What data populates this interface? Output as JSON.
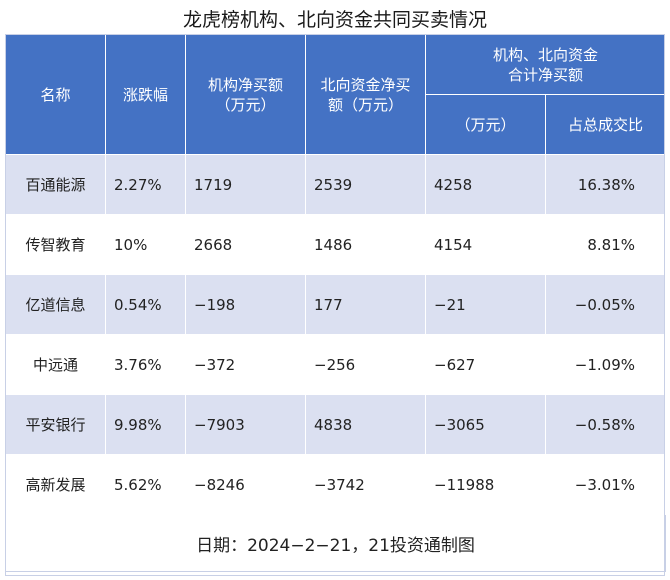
{
  "title": "龙虎榜机构、北向资金共同买卖情况",
  "headers": {
    "name": "名称",
    "change": "涨跌幅",
    "inst_net": "机构净买额\n（万元）",
    "north_net": "北向资金净买\n额（万元）",
    "combined_group": "机构、北向资金\n合计净买额",
    "combined_amount": "（万元）",
    "combined_ratio": "占总成交比"
  },
  "rows": [
    {
      "name": "百通能源",
      "change": "2.27%",
      "inst_net": "1719",
      "north_net": "2539",
      "combined": "4258",
      "ratio": "16.38%"
    },
    {
      "name": "传智教育",
      "change": "10%",
      "inst_net": "2668",
      "north_net": "1486",
      "combined": "4154",
      "ratio": "8.81%"
    },
    {
      "name": "亿道信息",
      "change": "0.54%",
      "inst_net": "−198",
      "north_net": "177",
      "combined": "−21",
      "ratio": "−0.05%"
    },
    {
      "name": "中远通",
      "change": "3.76%",
      "inst_net": "−372",
      "north_net": "−256",
      "combined": "−627",
      "ratio": "−1.09%"
    },
    {
      "name": "平安银行",
      "change": "9.98%",
      "inst_net": "−7903",
      "north_net": "4838",
      "combined": "−3065",
      "ratio": "−0.58%"
    },
    {
      "name": "高新发展",
      "change": "5.62%",
      "inst_net": "−8246",
      "north_net": "−3742",
      "combined": "−11988",
      "ratio": "−3.01%"
    }
  ],
  "footer": "日期：2024−2−21，21投资通制图",
  "colors": {
    "header_bg": "#4472c4",
    "stripe_bg": "#dbe0f1"
  }
}
